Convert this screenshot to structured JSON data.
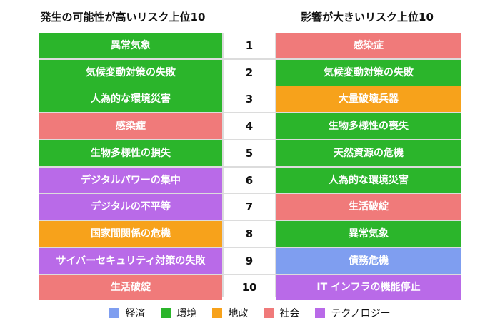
{
  "chart_data": {
    "type": "table",
    "headings": {
      "left": "発生の可能性が高いリスク上位10",
      "right": "影響が大きいリスク上位10"
    },
    "categories": [
      {
        "key": "economic",
        "name": "経済",
        "color": "#7f9ef0"
      },
      {
        "key": "environmental",
        "name": "環境",
        "color": "#2bb52b"
      },
      {
        "key": "geopolitical",
        "name": "地政",
        "color": "#f7a21b"
      },
      {
        "key": "societal",
        "name": "社会",
        "color": "#f07a7a"
      },
      {
        "key": "technological",
        "name": "テクノロジー",
        "color": "#b96ae8"
      }
    ],
    "rows": [
      {
        "rank": "1",
        "likelihood": {
          "label": "異常気象",
          "category": "environmental"
        },
        "impact": {
          "label": "感染症",
          "category": "societal"
        }
      },
      {
        "rank": "2",
        "likelihood": {
          "label": "気候変動対策の失敗",
          "category": "environmental"
        },
        "impact": {
          "label": "気候変動対策の失敗",
          "category": "environmental"
        }
      },
      {
        "rank": "3",
        "likelihood": {
          "label": "人為的な環境災害",
          "category": "environmental"
        },
        "impact": {
          "label": "大量破壊兵器",
          "category": "geopolitical"
        }
      },
      {
        "rank": "4",
        "likelihood": {
          "label": "感染症",
          "category": "societal"
        },
        "impact": {
          "label": "生物多様性の喪失",
          "category": "environmental"
        }
      },
      {
        "rank": "5",
        "likelihood": {
          "label": "生物多様性の損失",
          "category": "environmental"
        },
        "impact": {
          "label": "天然資源の危機",
          "category": "environmental"
        }
      },
      {
        "rank": "6",
        "likelihood": {
          "label": "デジタルパワーの集中",
          "category": "technological"
        },
        "impact": {
          "label": "人為的な環境災害",
          "category": "environmental"
        }
      },
      {
        "rank": "7",
        "likelihood": {
          "label": "デジタルの不平等",
          "category": "technological"
        },
        "impact": {
          "label": "生活破綻",
          "category": "societal"
        }
      },
      {
        "rank": "8",
        "likelihood": {
          "label": "国家間関係の危機",
          "category": "geopolitical"
        },
        "impact": {
          "label": "異常気象",
          "category": "environmental"
        }
      },
      {
        "rank": "9",
        "likelihood": {
          "label": "サイバーセキュリティ対策の失敗",
          "category": "technological"
        },
        "impact": {
          "label": "債務危機",
          "category": "economic"
        }
      },
      {
        "rank": "10",
        "likelihood": {
          "label": "生活破綻",
          "category": "societal"
        },
        "impact": {
          "label": "IT インフラの機能停止",
          "category": "technological"
        }
      }
    ]
  }
}
